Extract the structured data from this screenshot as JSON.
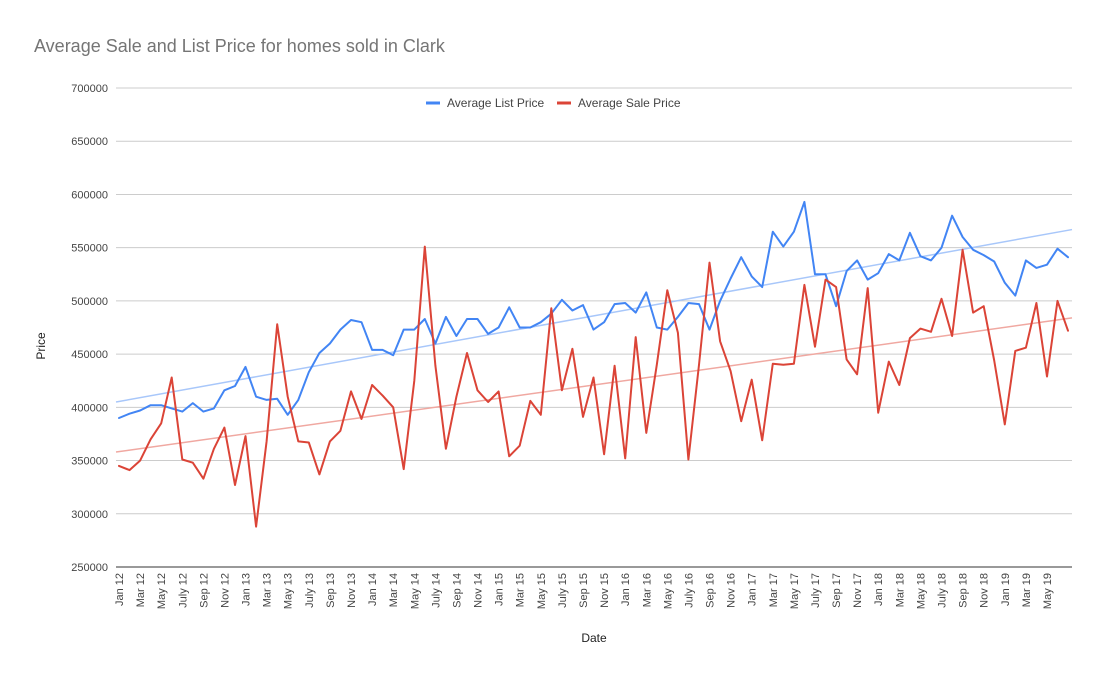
{
  "chart_data": {
    "type": "line",
    "title": "Average Sale and List Price for homes sold in Clark",
    "xlabel": "Date",
    "ylabel": "Price",
    "ylim": [
      250000,
      700000
    ],
    "yticks": [
      250000,
      300000,
      350000,
      400000,
      450000,
      500000,
      550000,
      600000,
      650000,
      700000
    ],
    "grid": true,
    "legend_position": "top-center",
    "x": [
      "Jan 12",
      "Feb 12",
      "Mar 12",
      "Apr 12",
      "May 12",
      "Jun 12",
      "July 12",
      "Aug 12",
      "Sep 12",
      "Oct 12",
      "Nov 12",
      "Dec 12",
      "Jan 13",
      "Feb 13",
      "Mar 13",
      "Apr 13",
      "May 13",
      "Jun 13",
      "July 13",
      "Aug 13",
      "Sep 13",
      "Oct 13",
      "Nov 13",
      "Dec 13",
      "Jan 14",
      "Feb 14",
      "Mar 14",
      "Apr 14",
      "May 14",
      "Jun 14",
      "July 14",
      "Aug 14",
      "Sep 14",
      "Oct 14",
      "Nov 14",
      "Dec 14",
      "Jan 15",
      "Feb 15",
      "Mar 15",
      "Apr 15",
      "May 15",
      "Jun 15",
      "July 15",
      "Aug 15",
      "Sep 15",
      "Oct 15",
      "Nov 15",
      "Dec 15",
      "Jan 16",
      "Feb 16",
      "Mar 16",
      "Apr 16",
      "May 16",
      "Jun 16",
      "July 16",
      "Aug 16",
      "Sep 16",
      "Oct 16",
      "Nov 16",
      "Dec 16",
      "Jan 17",
      "Feb 17",
      "Mar 17",
      "Apr 17",
      "May 17",
      "Jun 17",
      "July 17",
      "Aug 17",
      "Sep 17",
      "Oct 17",
      "Nov 17",
      "Dec 17",
      "Jan 18",
      "Feb 18",
      "Mar 18",
      "Apr 18",
      "May 18",
      "Jun 18",
      "July 18",
      "Aug 18",
      "Sep 18",
      "Oct 18",
      "Nov 18",
      "Dec 18",
      "Jan 19",
      "Feb 19",
      "Mar 19",
      "Apr 19",
      "May 19",
      "Jun 19",
      "July 19"
    ],
    "x_tick_labels": [
      "Jan 12",
      "Mar 12",
      "May 12",
      "July 12",
      "Sep 12",
      "Nov 12",
      "Jan 13",
      "Mar 13",
      "May 13",
      "July 13",
      "Sep 13",
      "Nov 13",
      "Jan 14",
      "Mar 14",
      "May 14",
      "July 14",
      "Sep 14",
      "Nov 14",
      "Jan 15",
      "Mar 15",
      "May 15",
      "July 15",
      "Sep 15",
      "Nov 15",
      "Jan 16",
      "Mar 16",
      "May 16",
      "July 16",
      "Sep 16",
      "Nov 16",
      "Jan 17",
      "Mar 17",
      "May 17",
      "July 17",
      "Sep 17",
      "Nov 17",
      "Jan 18",
      "Mar 18",
      "May 18",
      "July 18",
      "Sep 18",
      "Nov 18",
      "Jan 19",
      "Mar 19",
      "May 19"
    ],
    "series": [
      {
        "name": "Average List Price",
        "color": "#4285f4",
        "trendline_color": "#a8c7fa",
        "trendline": [
          405000,
          567000
        ],
        "values": [
          390000,
          394000,
          397000,
          402000,
          402000,
          399000,
          396000,
          404000,
          396000,
          399000,
          416000,
          420000,
          438000,
          410000,
          407000,
          408000,
          393000,
          407000,
          433000,
          451000,
          460000,
          473000,
          482000,
          480000,
          454000,
          454000,
          449000,
          473000,
          473000,
          483000,
          460000,
          485000,
          467000,
          483000,
          483000,
          469000,
          475000,
          494000,
          475000,
          475000,
          480000,
          488000,
          501000,
          491000,
          496000,
          473000,
          480000,
          497000,
          498000,
          489000,
          508000,
          475000,
          473000,
          485000,
          498000,
          497000,
          473000,
          500000,
          521000,
          541000,
          523000,
          513000,
          565000,
          551000,
          565000,
          593000,
          525000,
          525000,
          495000,
          528000,
          538000,
          520000,
          526000,
          544000,
          538000,
          564000,
          542000,
          538000,
          550000,
          580000,
          560000,
          548000,
          543000,
          537000,
          517000,
          505000,
          538000,
          531000,
          534000,
          549000,
          541000
        ]
      },
      {
        "name": "Average Sale Price",
        "color": "#db4437",
        "trendline_color": "#f0a8a1",
        "trendline": [
          358000,
          484000
        ],
        "values": [
          345000,
          341000,
          350000,
          370000,
          385000,
          428000,
          351000,
          348000,
          333000,
          361000,
          381000,
          327000,
          373000,
          288000,
          368000,
          478000,
          410000,
          368000,
          367000,
          337000,
          368000,
          378000,
          415000,
          389000,
          421000,
          411000,
          400000,
          342000,
          425000,
          551000,
          439000,
          361000,
          410000,
          451000,
          416000,
          405000,
          415000,
          354000,
          364000,
          406000,
          393000,
          493000,
          416000,
          455000,
          391000,
          428000,
          356000,
          439000,
          352000,
          466000,
          376000,
          440000,
          510000,
          470000,
          351000,
          440000,
          536000,
          462000,
          434000,
          387000,
          426000,
          369000,
          441000,
          440000,
          441000,
          515000,
          457000,
          520000,
          513000,
          445000,
          431000,
          512000,
          395000,
          443000,
          421000,
          465000,
          474000,
          471000,
          502000,
          467000,
          548000,
          489000,
          495000,
          444000,
          384000,
          453000,
          456000,
          498000,
          429000,
          500000,
          472000
        ]
      }
    ]
  }
}
